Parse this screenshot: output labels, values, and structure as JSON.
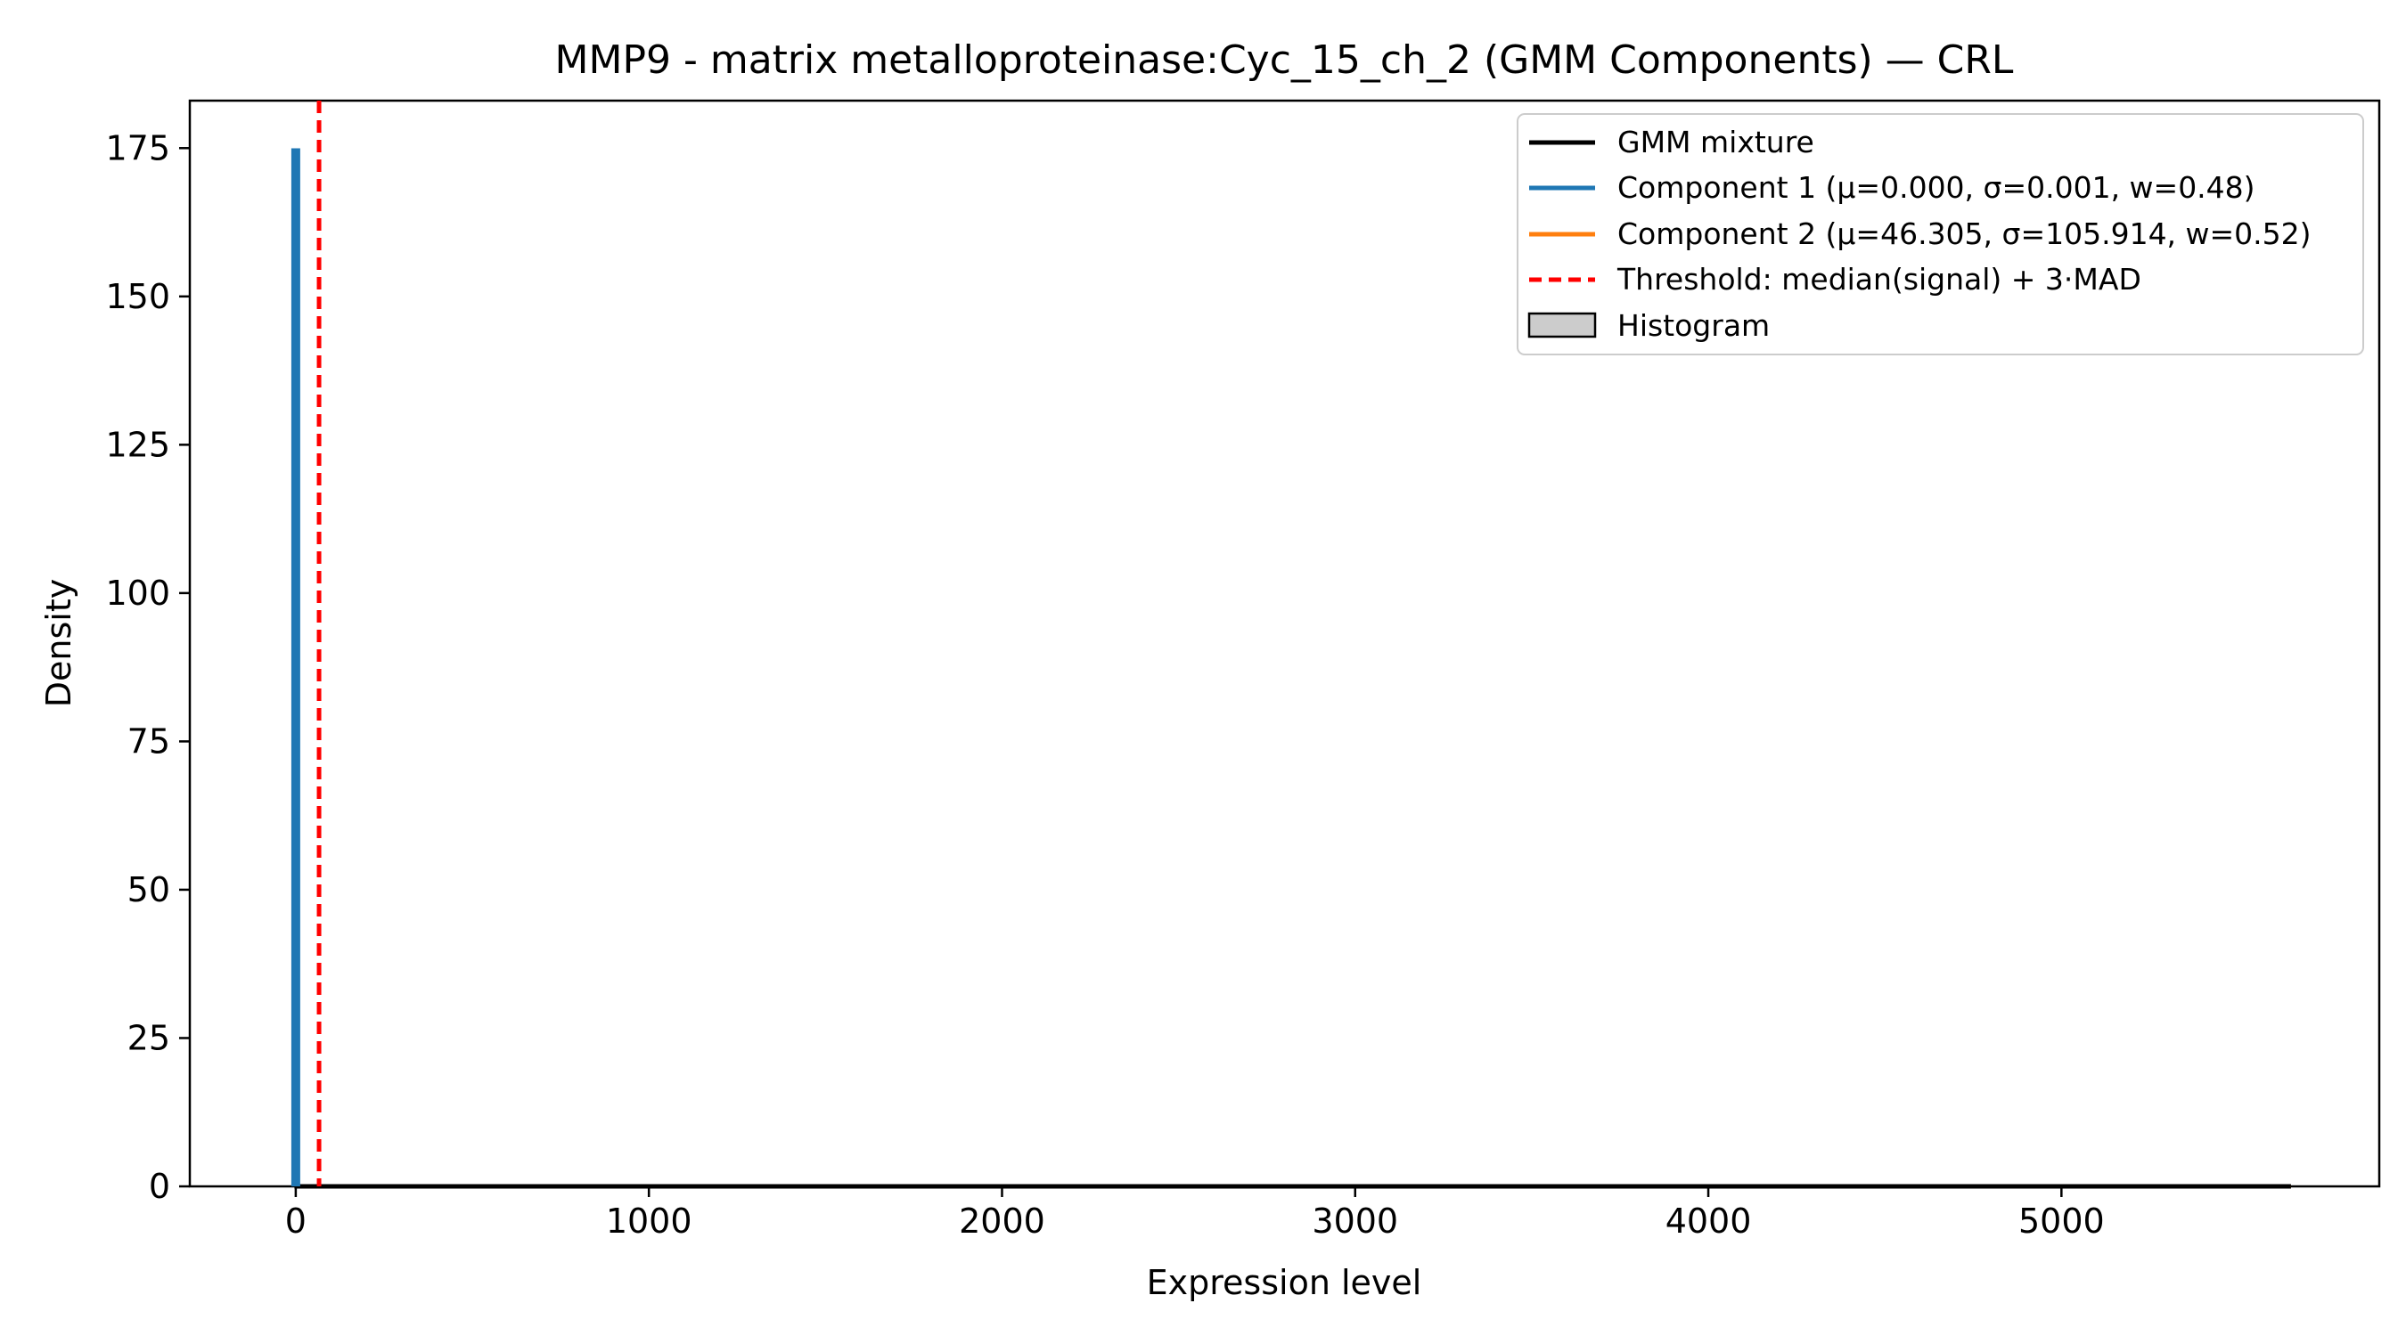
{
  "chart_data": {
    "type": "line",
    "title": "MMP9 - matrix metalloproteinase:Cyc_15_ch_2 (GMM Components) — CRL",
    "xlabel": "Expression level",
    "ylabel": "Density",
    "xlim": [
      -300,
      5900
    ],
    "ylim": [
      0,
      183
    ],
    "xticks": [
      0,
      1000,
      2000,
      3000,
      4000,
      5000
    ],
    "yticks": [
      0,
      25,
      50,
      75,
      100,
      125,
      150,
      175
    ],
    "grid": false,
    "legend_position": "top-right",
    "threshold": {
      "name": "Threshold: median(signal) + 3·MAD",
      "x": 66,
      "color": "#ff0000",
      "style": "dashed"
    },
    "histogram": {
      "name": "Histogram",
      "color": "#cccccc",
      "edgecolor": "#000000"
    },
    "series": [
      {
        "name": "GMM mixture",
        "color": "#000000",
        "x": [
          0,
          0.001,
          0.002,
          100,
          1000,
          2000,
          3000,
          4000,
          5000,
          5650
        ],
        "y": [
          174.6,
          105.9,
          23.6,
          0.0016,
          0.0,
          0.0,
          0.0,
          0.0,
          0.0,
          0.0
        ]
      },
      {
        "name": "Component 1 (μ=0.000, σ=0.001, w=0.48)",
        "color": "#1f77b4",
        "x": [
          -0.003,
          -0.002,
          -0.001,
          0,
          0.001,
          0.002,
          0.003
        ],
        "y": [
          0.0,
          23.6,
          105.9,
          174.6,
          105.9,
          23.6,
          0.0
        ]
      },
      {
        "name": "Component 2 (μ=46.305, σ=105.914, w=0.52)",
        "color": "#ff7f0e",
        "x": [
          0,
          46,
          200,
          500,
          1000,
          2000,
          3000,
          4000,
          5000,
          5650
        ],
        "y": [
          0.0018,
          0.002,
          0.0007,
          0.0,
          0.0,
          0.0,
          0.0,
          0.0,
          0.0,
          0.0
        ]
      }
    ]
  }
}
